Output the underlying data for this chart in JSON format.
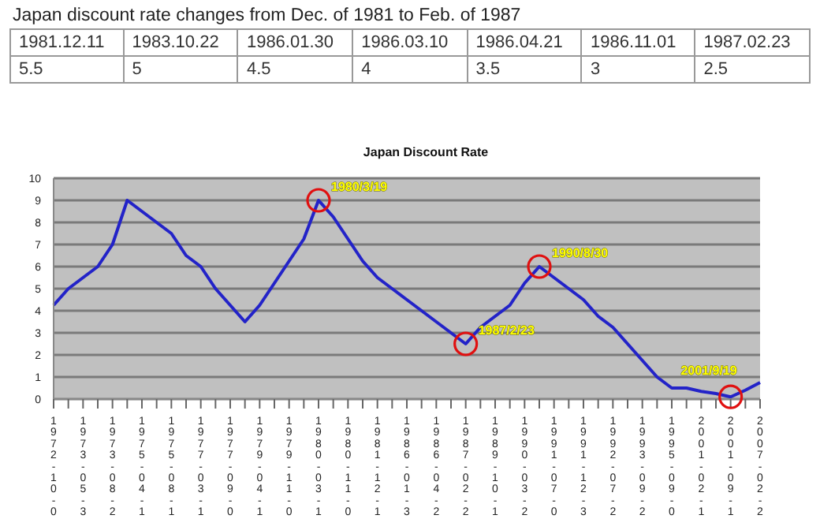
{
  "chart_data": [
    {
      "type": "other",
      "title": "Japan discount rate changes from Dec. of 1981 to Feb. of 1987",
      "categories": [
        "1981.12.11",
        "1983.10.22",
        "1986.01.30",
        "1986.03.10",
        "1986.04.21",
        "1986.11.01",
        "1987.02.23"
      ],
      "values": [
        5.5,
        5,
        4.5,
        4,
        3.5,
        3,
        2.5
      ],
      "data_labels": true
    },
    {
      "type": "line",
      "title": "Japan Discount Rate",
      "categories": [
        "1972-10-0",
        null,
        "1973-05-3",
        null,
        "1973-08-2",
        null,
        "1975-04-1",
        null,
        "1975-08-1",
        null,
        "1977-03-1",
        null,
        "1977-09-0",
        null,
        "1979-04-1",
        null,
        "1979-11-0",
        null,
        "1980-03-1",
        null,
        "1980-11-0",
        null,
        "1981-12-1",
        null,
        "1986-01-3",
        null,
        "1986-04-2",
        null,
        "1987-02-2",
        null,
        "1989-10-1",
        null,
        "1990-03-2",
        null,
        "1991-07-0",
        null,
        "1991-12-3",
        null,
        "1992-07-2",
        null,
        "1993-09-2",
        null,
        "1995-09-0",
        null,
        "2001-02-1",
        null,
        "2001-09-1",
        null,
        "2007-02-2"
      ],
      "series": [
        {
          "color": "#2323c8",
          "values": [
            4.25,
            5,
            5.5,
            6,
            7,
            9,
            8.5,
            8,
            7.5,
            6.5,
            6,
            5,
            4.25,
            3.5,
            4.25,
            5.25,
            6.25,
            7.25,
            9,
            8.25,
            7.25,
            6.25,
            5.5,
            5,
            4.5,
            4,
            3.5,
            3,
            2.5,
            3.25,
            3.75,
            4.25,
            5.25,
            6,
            5.5,
            5,
            4.5,
            3.75,
            3.25,
            2.5,
            1.75,
            1,
            0.5,
            0.5,
            0.35,
            0.25,
            0.1,
            0.4,
            0.75
          ]
        }
      ],
      "ylim": [
        0,
        10
      ],
      "yticks": [
        0,
        1,
        2,
        3,
        4,
        5,
        6,
        7,
        8,
        9,
        10
      ],
      "grid": "y",
      "marker": "none",
      "line_style": "solid",
      "annotations": [
        {
          "text": "1980/3/19",
          "x": "1980-03-1",
          "y": 9
        },
        {
          "text": "1987/2/23",
          "x": "1987-02-2",
          "y": 2.5
        },
        "1990/8/30",
        {
          "text": "2001/9/19",
          "x": "2001-09-1",
          "y": 0.1
        }
      ]
    }
  ]
}
